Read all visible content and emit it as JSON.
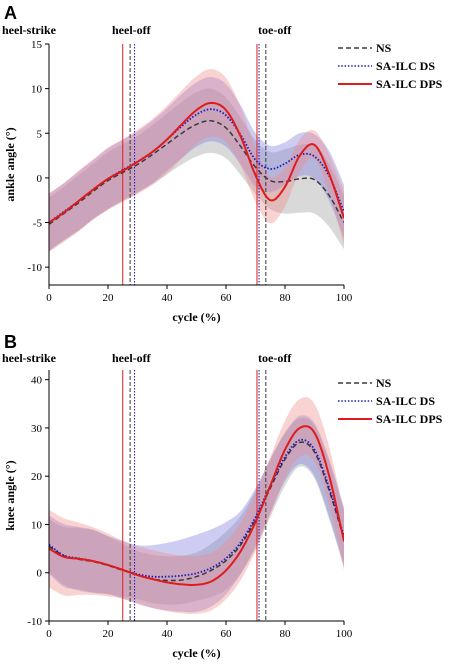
{
  "figure": {
    "colors": {
      "NS": "#3a3a3a",
      "SA-ILC DS": "#1a1ab8",
      "SA-ILC DPS": "#e01b1b",
      "band_NS": "#9a9a9a",
      "band_DS": "#7b7be0",
      "band_DPS": "#f08a8a"
    },
    "line_styles": {
      "NS": "dashed",
      "SA-ILC DS": "dotted",
      "SA-ILC DPS": "solid"
    }
  },
  "chart_data": [
    {
      "panel": "A",
      "type": "line",
      "xlabel": "cycle (%)",
      "ylabel": "ankle angle (°)",
      "xlim": [
        0,
        100
      ],
      "ylim": [
        -12,
        15
      ],
      "xticks": [
        0,
        20,
        40,
        60,
        80,
        100
      ],
      "yticks": [
        -10,
        -5,
        0,
        5,
        10,
        15
      ],
      "gait_events": [
        {
          "label": "heel-strike",
          "x": 0
        },
        {
          "label": "heel-off",
          "x": 27
        },
        {
          "label": "toe-off",
          "x": 72
        }
      ],
      "event_lines": [
        {
          "series": "SA-ILC DPS",
          "x": 25
        },
        {
          "series": "NS",
          "x": 27.5
        },
        {
          "series": "SA-ILC DS",
          "x": 29
        },
        {
          "series": "SA-ILC DPS",
          "x": 70.5
        },
        {
          "series": "SA-ILC DS",
          "x": 71.2
        },
        {
          "series": "NS",
          "x": 73.5
        }
      ],
      "legend_position": "top-right",
      "x": [
        0,
        5,
        10,
        15,
        20,
        25,
        30,
        35,
        40,
        45,
        50,
        55,
        60,
        65,
        70,
        75,
        80,
        85,
        90,
        95,
        100
      ],
      "series": [
        {
          "name": "NS",
          "values": [
            -5.2,
            -4.0,
            -2.8,
            -1.5,
            -0.3,
            0.6,
            1.5,
            2.6,
            3.8,
            5.0,
            6.0,
            6.4,
            5.6,
            3.5,
            1.2,
            -0.3,
            -0.4,
            -0.1,
            -0.2,
            -2.0,
            -5.0
          ],
          "band": [
            3.0,
            3.0,
            3.1,
            3.1,
            3.2,
            3.2,
            3.2,
            3.3,
            3.4,
            3.5,
            3.6,
            3.6,
            3.4,
            3.2,
            3.0,
            3.2,
            3.6,
            3.8,
            3.8,
            3.5,
            3.0
          ]
        },
        {
          "name": "SA-ILC DS",
          "values": [
            -5.0,
            -3.8,
            -2.6,
            -1.3,
            -0.1,
            0.9,
            1.8,
            2.9,
            4.3,
            5.8,
            7.1,
            7.7,
            7.0,
            4.8,
            2.0,
            1.0,
            1.6,
            2.6,
            2.4,
            0.2,
            -3.8
          ],
          "band": [
            3.2,
            3.2,
            3.3,
            3.3,
            3.4,
            3.4,
            3.4,
            3.5,
            3.5,
            3.6,
            3.6,
            3.6,
            3.5,
            3.3,
            3.0,
            2.6,
            2.4,
            2.4,
            2.5,
            2.8,
            3.0
          ]
        },
        {
          "name": "SA-ILC DPS",
          "values": [
            -5.0,
            -3.9,
            -2.6,
            -1.3,
            -0.1,
            0.8,
            1.8,
            2.9,
            4.3,
            6.0,
            7.6,
            8.4,
            7.6,
            4.6,
            0.3,
            -2.5,
            -1.0,
            2.5,
            3.7,
            0.4,
            -4.5
          ],
          "band": [
            3.3,
            3.3,
            3.4,
            3.4,
            3.5,
            3.5,
            3.6,
            3.7,
            3.8,
            3.8,
            3.8,
            3.8,
            3.6,
            3.3,
            3.0,
            2.6,
            2.2,
            1.8,
            1.6,
            2.2,
            3.0
          ]
        }
      ]
    },
    {
      "panel": "B",
      "type": "line",
      "xlabel": "cycle (%)",
      "ylabel": "knee angle (°)",
      "xlim": [
        0,
        100
      ],
      "ylim": [
        -10,
        42
      ],
      "xticks": [
        0,
        20,
        40,
        60,
        80,
        100
      ],
      "yticks": [
        -10,
        0,
        10,
        20,
        30,
        40
      ],
      "gait_events": [
        {
          "label": "heel-strike",
          "x": 0
        },
        {
          "label": "heel-off",
          "x": 27
        },
        {
          "label": "toe-off",
          "x": 72
        }
      ],
      "event_lines": [
        {
          "series": "SA-ILC DPS",
          "x": 25
        },
        {
          "series": "NS",
          "x": 27.5
        },
        {
          "series": "SA-ILC DS",
          "x": 29
        },
        {
          "series": "SA-ILC DPS",
          "x": 70.5
        },
        {
          "series": "SA-ILC DS",
          "x": 71.2
        },
        {
          "series": "NS",
          "x": 73.5
        }
      ],
      "legend_position": "top-right",
      "x": [
        0,
        5,
        10,
        15,
        20,
        25,
        30,
        35,
        40,
        45,
        50,
        55,
        60,
        65,
        70,
        75,
        80,
        85,
        90,
        95,
        100
      ],
      "series": [
        {
          "name": "NS",
          "values": [
            5.5,
            3.5,
            2.8,
            2.3,
            1.5,
            0.5,
            -0.5,
            -1.3,
            -1.6,
            -1.5,
            -0.8,
            0.5,
            2.5,
            5.8,
            11.0,
            17.5,
            23.5,
            27.0,
            25.0,
            17.0,
            7.0
          ],
          "band": [
            5.5,
            6.0,
            6.5,
            6.5,
            6.0,
            5.5,
            5.0,
            5.0,
            5.0,
            5.0,
            5.0,
            5.5,
            6.0,
            6.0,
            6.0,
            6.0,
            5.5,
            5.0,
            5.5,
            6.0,
            6.0
          ]
        },
        {
          "name": "SA-ILC DS",
          "values": [
            5.8,
            3.6,
            3.0,
            2.4,
            1.6,
            0.6,
            -0.3,
            -0.8,
            -0.8,
            -0.6,
            -0.1,
            1.0,
            3.0,
            6.3,
            11.5,
            18.0,
            24.0,
            27.5,
            25.5,
            17.5,
            7.5
          ],
          "band": [
            6.0,
            6.5,
            6.5,
            6.5,
            6.0,
            6.0,
            6.0,
            6.5,
            7.0,
            7.5,
            8.0,
            8.0,
            7.5,
            6.5,
            6.0,
            5.5,
            5.0,
            5.0,
            5.5,
            6.0,
            6.0
          ]
        },
        {
          "name": "SA-ILC DPS",
          "values": [
            5.0,
            3.3,
            2.9,
            2.4,
            1.6,
            0.6,
            -0.5,
            -1.3,
            -2.0,
            -2.4,
            -2.5,
            -1.8,
            0.5,
            4.5,
            10.5,
            18.0,
            25.5,
            30.0,
            29.0,
            20.0,
            6.5
          ],
          "band": [
            8.0,
            8.0,
            7.5,
            7.0,
            6.5,
            6.0,
            6.0,
            6.0,
            6.0,
            6.0,
            6.0,
            6.0,
            6.0,
            6.0,
            6.0,
            6.0,
            6.0,
            6.0,
            6.0,
            6.0,
            6.0
          ]
        }
      ]
    }
  ]
}
